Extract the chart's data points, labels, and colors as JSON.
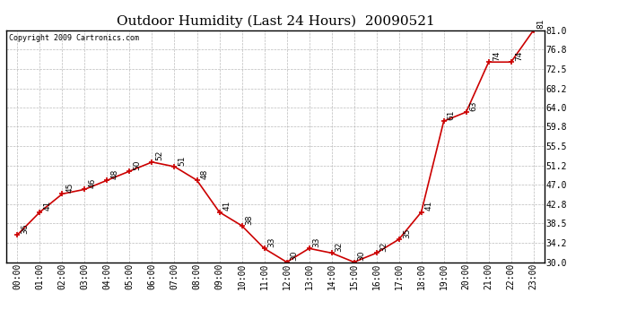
{
  "title": "Outdoor Humidity (Last 24 Hours)  20090521",
  "copyright": "Copyright 2009 Cartronics.com",
  "x_labels": [
    "00:00",
    "01:00",
    "02:00",
    "03:00",
    "04:00",
    "05:00",
    "06:00",
    "07:00",
    "08:00",
    "09:00",
    "10:00",
    "11:00",
    "12:00",
    "13:00",
    "14:00",
    "15:00",
    "16:00",
    "17:00",
    "18:00",
    "19:00",
    "20:00",
    "21:00",
    "22:00",
    "23:00"
  ],
  "hours": [
    0,
    1,
    2,
    3,
    4,
    5,
    6,
    7,
    8,
    9,
    10,
    11,
    12,
    13,
    14,
    15,
    16,
    17,
    18,
    19,
    20,
    21,
    22,
    23
  ],
  "values": [
    36,
    41,
    45,
    46,
    48,
    50,
    52,
    51,
    48,
    41,
    38,
    33,
    30,
    33,
    32,
    30,
    32,
    35,
    41,
    61,
    63,
    74,
    74,
    81
  ],
  "ylim": [
    30.0,
    81.0
  ],
  "yticks": [
    30.0,
    34.2,
    38.5,
    42.8,
    47.0,
    51.2,
    55.5,
    59.8,
    64.0,
    68.2,
    72.5,
    76.8,
    81.0
  ],
  "line_color": "#cc0000",
  "marker_color": "#cc0000",
  "bg_color": "#ffffff",
  "plot_bg_color": "#ffffff",
  "grid_color": "#bbbbbb",
  "title_fontsize": 11,
  "label_fontsize": 7,
  "annotation_fontsize": 6.5,
  "copyright_fontsize": 6
}
